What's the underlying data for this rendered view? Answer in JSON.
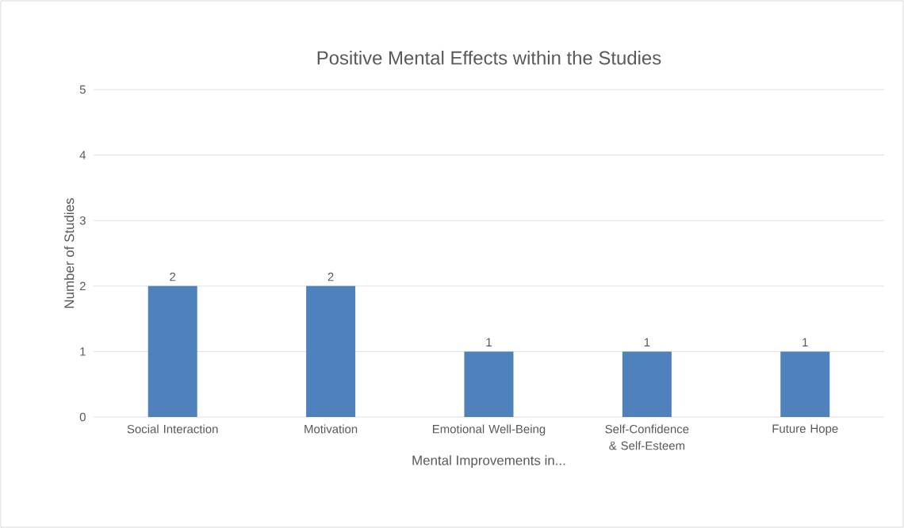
{
  "chart_data": {
    "type": "bar",
    "title": "Positive Mental Effects within the Studies",
    "xlabel": "Mental Improvements in...",
    "ylabel": "Number of Studies",
    "categories": [
      "Social Interaction",
      "Motivation",
      "Emotional Well-Being",
      "Self-Confidence & Self-Esteem",
      "Future Hope"
    ],
    "values": [
      2,
      2,
      1,
      1,
      1
    ],
    "color": "#4f81bd",
    "ylim": [
      0,
      5
    ],
    "yticks": [
      0,
      1,
      2,
      3,
      4,
      5
    ],
    "grid": "y",
    "data_labels": true
  }
}
